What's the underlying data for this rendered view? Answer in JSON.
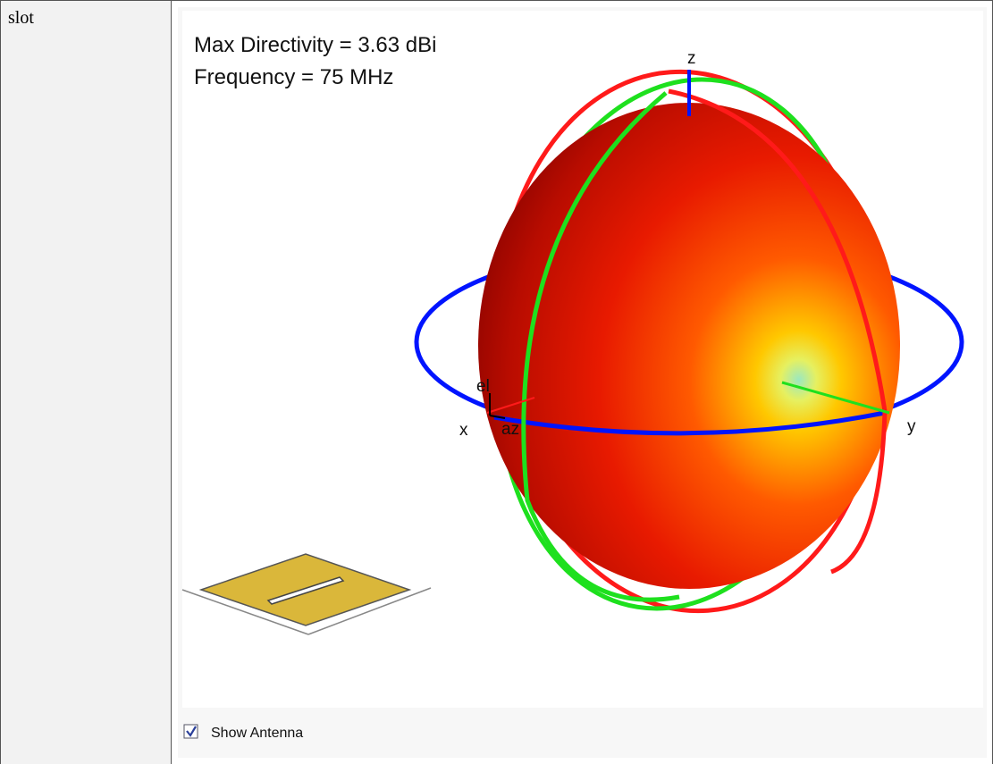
{
  "table": {
    "rows": [
      [
        "slot"
      ]
    ]
  },
  "figure": {
    "annotations": [
      "Max Directivity = 3.63 dBi",
      "Frequency = 75 MHz"
    ],
    "axes": {
      "z": "z",
      "x": "x",
      "y": "y",
      "el": "el",
      "az": "az"
    },
    "checkbox": {
      "label": "Show Antenna",
      "checked": true
    }
  }
}
